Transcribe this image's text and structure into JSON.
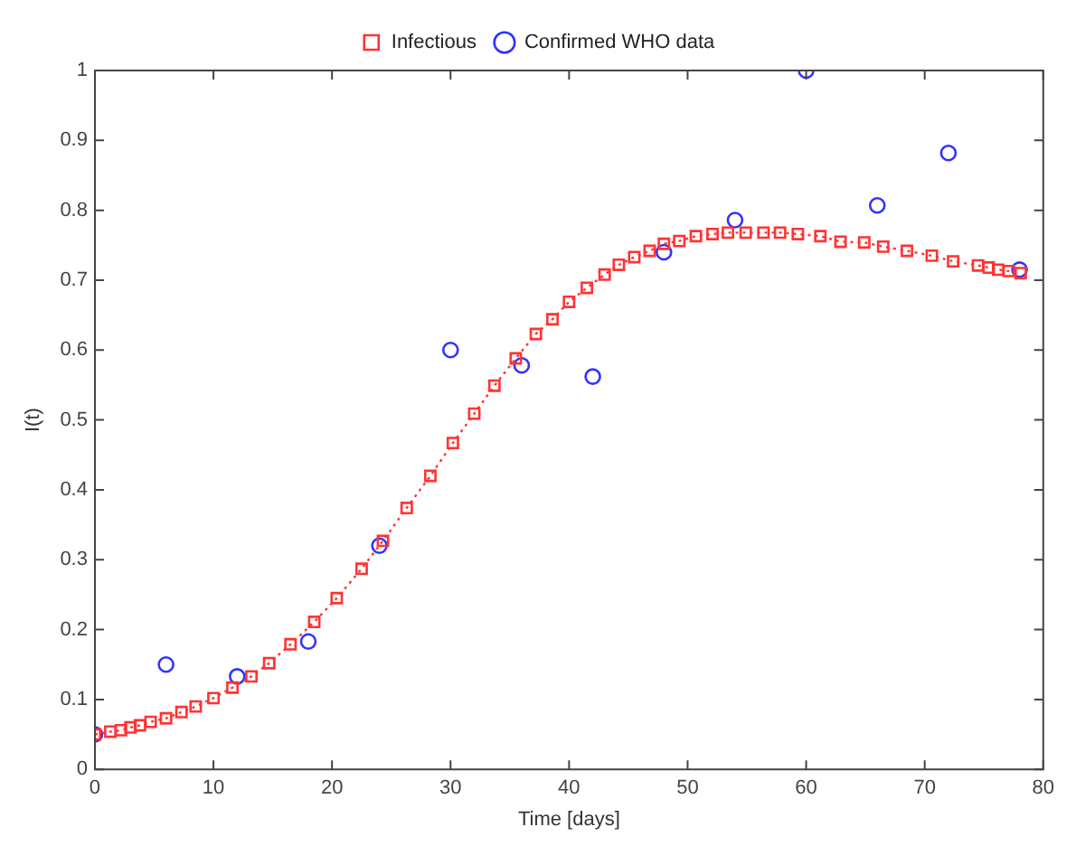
{
  "chart_data": {
    "type": "line",
    "xlabel": "Time [days]",
    "ylabel": "I(t)",
    "xlim": [
      0,
      80
    ],
    "xticks": [
      0,
      10,
      20,
      30,
      40,
      50,
      60,
      70,
      80
    ],
    "ylim": [
      0,
      1
    ],
    "yticks": [
      0,
      0.1,
      0.2,
      0.3,
      0.4,
      0.5,
      0.6,
      0.7,
      0.8,
      0.9,
      1
    ],
    "grid": false,
    "legend": "top",
    "series": [
      {
        "name": "Infectious",
        "color": "#ff3333",
        "marker": "square",
        "line_style": "dotted",
        "x": [
          0,
          1.3,
          2.2,
          3.0,
          3.8,
          4.7,
          6.0,
          7.3,
          8.5,
          10.0,
          11.6,
          13.2,
          14.7,
          16.5,
          18.5,
          20.4,
          22.5,
          24.3,
          26.3,
          28.3,
          30.2,
          32.0,
          33.7,
          35.5,
          37.2,
          38.6,
          40.0,
          41.5,
          43.0,
          44.2,
          45.5,
          46.8,
          48.0,
          49.3,
          50.7,
          52.1,
          53.4,
          54.9,
          56.4,
          57.8,
          59.3,
          61.2,
          62.9,
          64.9,
          66.5,
          68.5,
          70.6,
          72.4,
          74.5,
          75.4,
          76.2,
          77.1,
          78.1
        ],
        "values": [
          0.05,
          0.054,
          0.056,
          0.06,
          0.063,
          0.068,
          0.073,
          0.082,
          0.09,
          0.102,
          0.117,
          0.133,
          0.152,
          0.179,
          0.211,
          0.245,
          0.287,
          0.327,
          0.374,
          0.42,
          0.467,
          0.509,
          0.549,
          0.588,
          0.623,
          0.644,
          0.669,
          0.689,
          0.708,
          0.722,
          0.733,
          0.742,
          0.752,
          0.756,
          0.763,
          0.766,
          0.768,
          0.768,
          0.768,
          0.768,
          0.766,
          0.763,
          0.755,
          0.754,
          0.748,
          0.742,
          0.735,
          0.727,
          0.721,
          0.718,
          0.715,
          0.713,
          0.71
        ]
      },
      {
        "name": "Confirmed WHO data",
        "type": "scatter",
        "color": "#3333ff",
        "marker": "circle",
        "x": [
          0,
          6,
          12,
          18,
          24,
          30,
          36,
          42,
          48,
          54,
          60,
          66,
          72,
          78
        ],
        "values": [
          0.05,
          0.15,
          0.133,
          0.183,
          0.32,
          0.6,
          0.578,
          0.562,
          0.74,
          0.786,
          1.0,
          0.807,
          0.882,
          0.715
        ]
      }
    ]
  }
}
